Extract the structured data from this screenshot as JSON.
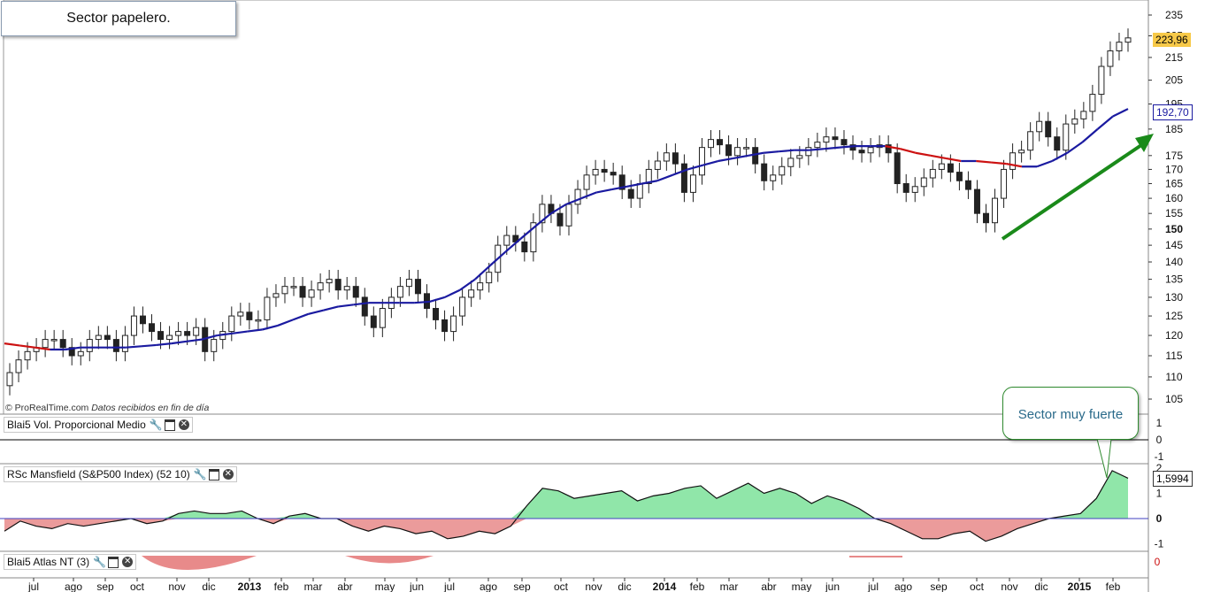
{
  "title": "Sector papelero.",
  "source": "© ProRealTime.com",
  "source_note": "Datos recibidos en fin de día",
  "callout": "Sector muy fuerte",
  "colors": {
    "ma_up": "#1a1aa0",
    "ma_down": "#cc1111",
    "arrow": "#1a8a1a",
    "rs_pos": "#7de29a",
    "rs_neg": "#e88a8a",
    "price_tag": "#f7c948"
  },
  "panels": {
    "vol": {
      "label": "Blai5 Vol. Proporcional Medio",
      "ticks": [
        "1",
        "0",
        "-1"
      ],
      "value": "0"
    },
    "rs": {
      "label": "RSc Mansfield (S&P500 Index) (52 10)",
      "ticks": [
        "2",
        "1",
        "0",
        "-1"
      ],
      "value": "1,5994"
    },
    "atlas": {
      "label": "Blai5 Atlas NT (3)",
      "value": "0"
    }
  },
  "chart_data": {
    "type": "candlestick",
    "title": "Sector papelero.",
    "y_ticks": [
      105,
      110,
      115,
      120,
      125,
      130,
      135,
      140,
      145,
      150,
      155,
      160,
      165,
      170,
      175,
      185,
      195,
      205,
      215,
      225,
      235
    ],
    "y_scale": "log",
    "last_price": "223,96",
    "ma_last": "192,70",
    "x_labels": [
      "jul",
      "ago",
      "sep",
      "oct",
      "nov",
      "dic",
      "2013",
      "feb",
      "mar",
      "abr",
      "may",
      "jun",
      "jul",
      "ago",
      "sep",
      "oct",
      "nov",
      "dic",
      "2014",
      "feb",
      "mar",
      "abr",
      "may",
      "jun",
      "jul",
      "ago",
      "sep",
      "oct",
      "nov",
      "dic",
      "2015",
      "feb"
    ],
    "series": [
      {
        "name": "price",
        "kind": "weekly candles",
        "closes": [
          111,
          114,
          116,
          117,
          119,
          119,
          117,
          115,
          116,
          119,
          120,
          119,
          116,
          120,
          125,
          123,
          121,
          119,
          120,
          121,
          120,
          122,
          116,
          119,
          121,
          125,
          126,
          124,
          124,
          130,
          131,
          133,
          133,
          130,
          132,
          134,
          135,
          132,
          133,
          130,
          125,
          122,
          127,
          130,
          133,
          135,
          131,
          127,
          124,
          121,
          125,
          130,
          132,
          134,
          137,
          145,
          148,
          146,
          143,
          152,
          158,
          155,
          151,
          158,
          163,
          168,
          170,
          169,
          168,
          163,
          160,
          165,
          170,
          173,
          176,
          172,
          162,
          168,
          178,
          181,
          179,
          175,
          178,
          178,
          172,
          166,
          168,
          171,
          174,
          175,
          178,
          180,
          182,
          181,
          179,
          177,
          176,
          178,
          179,
          176,
          165,
          162,
          164,
          167,
          170,
          172,
          169,
          166,
          163,
          155,
          152,
          160,
          170,
          176,
          177,
          184,
          188,
          182,
          177,
          187,
          189,
          192,
          199,
          211,
          218,
          222,
          224
        ]
      },
      {
        "name": "moving average",
        "values": [
          118,
          117.5,
          117,
          116.5,
          116.5,
          117,
          117,
          117,
          117,
          117.3,
          117.6,
          118,
          118.5,
          119,
          120,
          120.5,
          121,
          121.5,
          122.5,
          124,
          125.5,
          126.5,
          127.5,
          128,
          128.5,
          128.5,
          128.5,
          128.5,
          128.8,
          130,
          132,
          135,
          139,
          143,
          147,
          151,
          155,
          158,
          160,
          162,
          163,
          164,
          165,
          166,
          168,
          170,
          171.5,
          173,
          174,
          175,
          176,
          176.5,
          177,
          177,
          177.5,
          178,
          178.5,
          178.5,
          178.5,
          177.5,
          176,
          175,
          174,
          173,
          173,
          172.5,
          172,
          171,
          171,
          173,
          176,
          180,
          185,
          190,
          193
        ]
      }
    ],
    "rs_mansfield": [
      -0.5,
      -0.1,
      -0.3,
      -0.4,
      -0.2,
      -0.3,
      -0.2,
      -0.1,
      0,
      -0.2,
      -0.1,
      0.2,
      0.3,
      0.2,
      0.2,
      0.3,
      0,
      -0.2,
      0.1,
      0.2,
      0,
      0,
      -0.3,
      -0.5,
      -0.3,
      -0.4,
      -0.6,
      -0.5,
      -0.8,
      -0.7,
      -0.5,
      -0.6,
      -0.3,
      0.5,
      1.2,
      1.1,
      0.8,
      0.9,
      1,
      1.1,
      0.7,
      0.9,
      1,
      1.2,
      1.3,
      0.8,
      1.1,
      1.4,
      1.0,
      1.2,
      1.0,
      0.6,
      0.9,
      0.7,
      0.4,
      0,
      -0.2,
      -0.5,
      -0.8,
      -0.8,
      -0.6,
      -0.5,
      -0.9,
      -0.7,
      -0.4,
      -0.2,
      0,
      0.1,
      0.2,
      0.8,
      1.9,
      1.6
    ]
  }
}
